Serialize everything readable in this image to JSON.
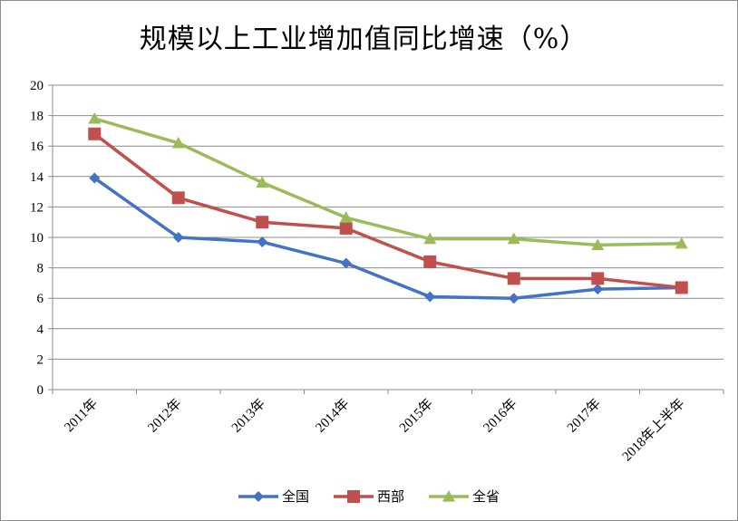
{
  "chart_data": {
    "type": "line",
    "title": "规模以上工业增加值同比增速（%）",
    "categories": [
      "2011年",
      "2012年",
      "2013年",
      "2014年",
      "2015年",
      "2016年",
      "2017年",
      "2018年上半年"
    ],
    "ylim": [
      0,
      20
    ],
    "yticks": [
      0,
      2,
      4,
      6,
      8,
      10,
      12,
      14,
      16,
      18,
      20
    ],
    "grid": true,
    "legend_position": "bottom",
    "series": [
      {
        "name": "全国",
        "color": "#4472C4",
        "marker": "diamond",
        "values": [
          13.9,
          10.0,
          9.7,
          8.3,
          6.1,
          6.0,
          6.6,
          6.7
        ]
      },
      {
        "name": "西部",
        "color": "#C0504D",
        "marker": "square",
        "values": [
          16.8,
          12.6,
          11.0,
          10.6,
          8.4,
          7.3,
          7.3,
          6.7
        ]
      },
      {
        "name": "全省",
        "color": "#9BBB59",
        "marker": "triangle",
        "values": [
          17.8,
          16.2,
          13.6,
          11.3,
          9.9,
          9.9,
          9.5,
          9.6
        ]
      }
    ]
  }
}
